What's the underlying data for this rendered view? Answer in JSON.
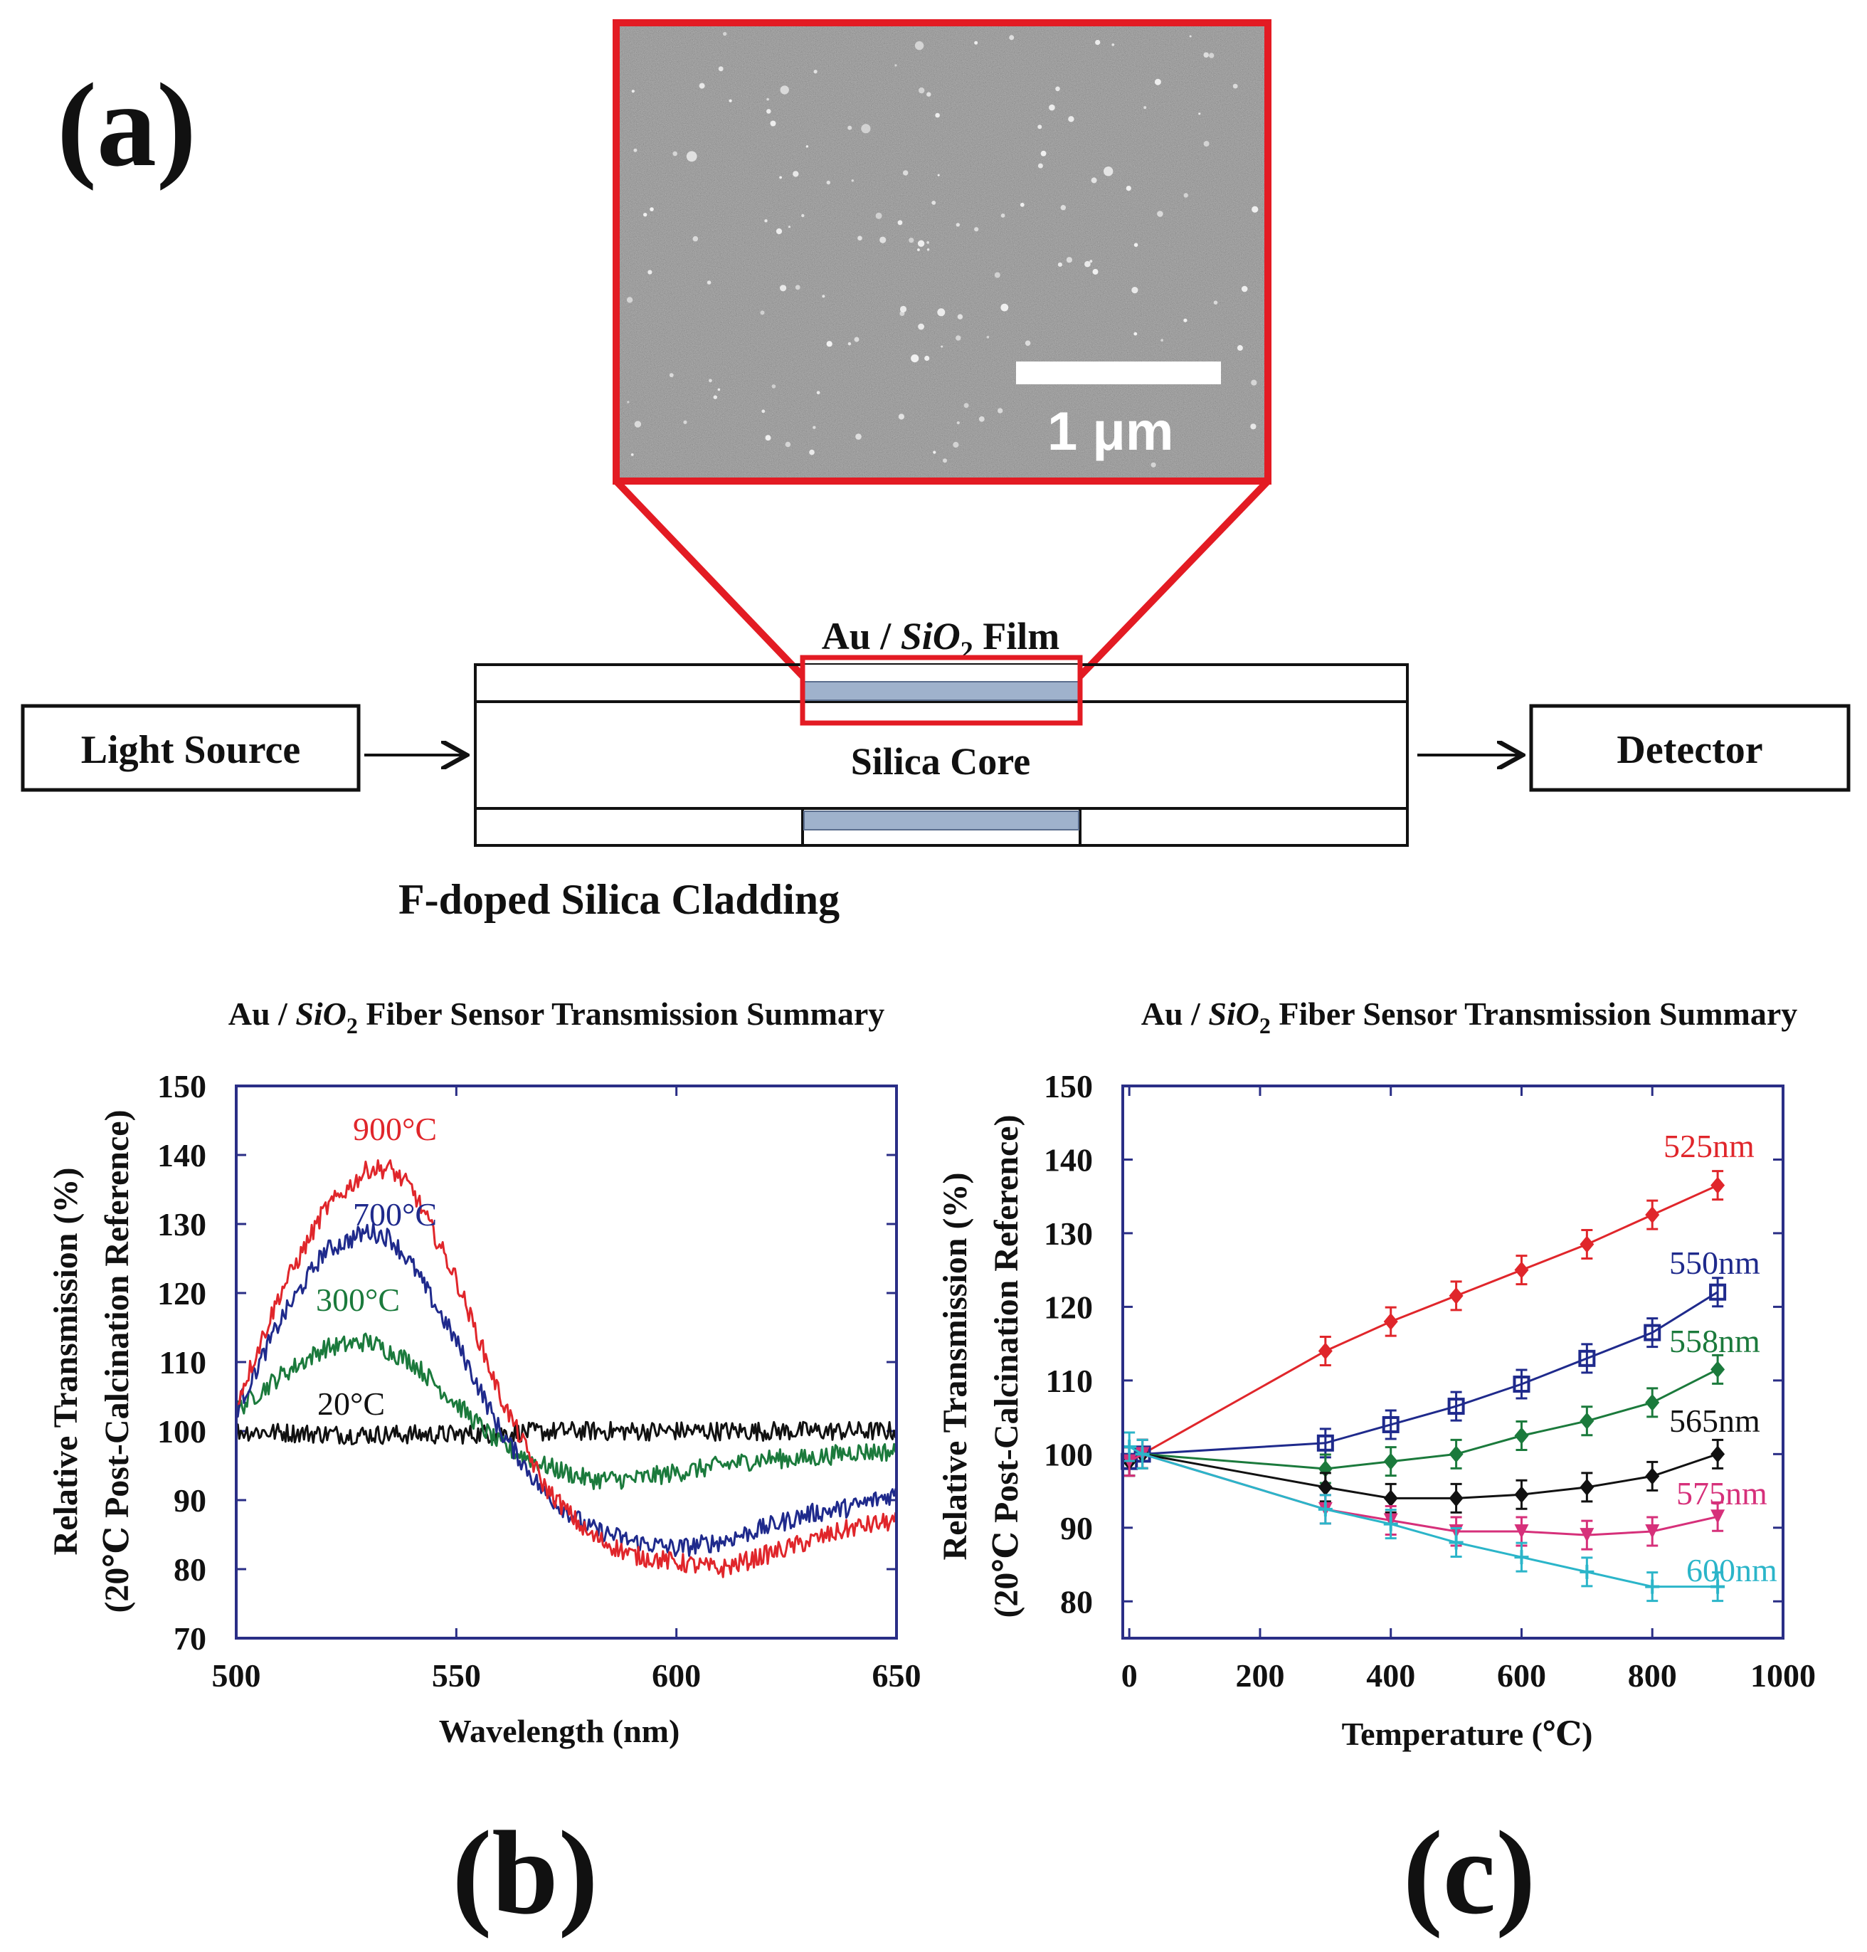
{
  "panel_labels": {
    "a": "(a)",
    "b": "(b)",
    "c": "(c)"
  },
  "sem": {
    "scale_label": "1 μm"
  },
  "schematic": {
    "film_prefix": "Au / ",
    "film_chem": "SiO",
    "film_sub": "2",
    "film_suffix": " Film",
    "light_source": "Light Source",
    "core": "Silica Core",
    "detector": "Detector",
    "cladding": "F-doped Silica Cladding"
  },
  "colors": {
    "red": "#e0262b",
    "blue": "#1f2a8c",
    "green": "#1b7a3c",
    "black": "#111111",
    "magenta": "#d6307a",
    "cyan": "#2bb5c9",
    "axis": "#2a2e86",
    "highlight": "#e31b23"
  },
  "chart_data": [
    {
      "type": "line",
      "title_prefix": "Au / ",
      "title_chem": "SiO",
      "title_sub": "2",
      "title_suffix": " Fiber Sensor Transmission Summary",
      "xlabel": "Wavelength (nm)",
      "ylabel_line1": "Relative Transmission (%)",
      "ylabel_line2": "(20℃ Post-Calcination Reference)",
      "xlim": [
        500,
        650
      ],
      "ylim": [
        70,
        150
      ],
      "xticks": [
        "500",
        "550",
        "600",
        "650"
      ],
      "yticks": [
        "70",
        "80",
        "90",
        "100",
        "110",
        "120",
        "130",
        "140",
        "150"
      ],
      "series": [
        {
          "name": "900°C",
          "color": "red",
          "x": [
            500,
            510,
            520,
            530,
            535,
            540,
            550,
            560,
            570,
            580,
            590,
            600,
            610,
            620,
            630,
            640,
            650
          ],
          "y": [
            104,
            120,
            132,
            138,
            138,
            135,
            122,
            105,
            92,
            85,
            82,
            81,
            80,
            82,
            84,
            86,
            87
          ]
        },
        {
          "name": "700°C",
          "color": "blue",
          "x": [
            500,
            510,
            520,
            530,
            535,
            540,
            550,
            560,
            570,
            580,
            590,
            600,
            610,
            620,
            630,
            640,
            650
          ],
          "y": [
            103,
            116,
            126,
            129,
            128,
            124,
            113,
            100,
            91,
            86,
            84,
            83,
            84,
            86,
            88,
            89,
            91
          ]
        },
        {
          "name": "300°C",
          "color": "green",
          "x": [
            500,
            510,
            520,
            530,
            540,
            550,
            560,
            570,
            580,
            590,
            600,
            610,
            620,
            630,
            640,
            650
          ],
          "y": [
            103,
            108,
            112,
            113,
            110,
            104,
            98,
            95,
            93,
            93,
            94,
            95,
            96,
            96,
            97,
            97
          ]
        },
        {
          "name": "20°C",
          "color": "black",
          "x": [
            500,
            525,
            550,
            575,
            600,
            625,
            650
          ],
          "y": [
            100,
            99.5,
            99.5,
            100,
            100,
            100,
            100
          ]
        }
      ],
      "annotations": [
        "900°C",
        "700°C",
        "300°C",
        "20°C"
      ]
    },
    {
      "type": "line",
      "title_prefix": "Au / ",
      "title_chem": "SiO",
      "title_sub": "2",
      "title_suffix": " Fiber Sensor Transmission Summary",
      "xlabel": "Temperature (℃)",
      "ylabel_line1": "Relative Transmission (%)",
      "ylabel_line2": "(20℃ Post-Calcination Reference)",
      "xlim": [
        -10,
        1000
      ],
      "ylim": [
        75,
        150
      ],
      "xticks": [
        "0",
        "200",
        "400",
        "600",
        "800",
        "1000"
      ],
      "yticks": [
        "80",
        "90",
        "100",
        "110",
        "120",
        "130",
        "140",
        "150"
      ],
      "series": [
        {
          "name": "525nm",
          "color": "red",
          "marker": "diamond",
          "x": [
            0,
            20,
            300,
            400,
            500,
            600,
            700,
            800,
            900
          ],
          "y": [
            99,
            100,
            114,
            118,
            121.5,
            125,
            128.5,
            132.5,
            136.5
          ]
        },
        {
          "name": "550nm",
          "color": "blue",
          "marker": "square",
          "x": [
            0,
            20,
            300,
            400,
            500,
            600,
            700,
            800,
            900
          ],
          "y": [
            99,
            100,
            101.5,
            104,
            106.5,
            109.5,
            113,
            116.5,
            122
          ]
        },
        {
          "name": "558nm",
          "color": "green",
          "marker": "diamond",
          "x": [
            0,
            20,
            300,
            400,
            500,
            600,
            700,
            800,
            900
          ],
          "y": [
            99,
            100,
            98,
            99,
            100,
            102.5,
            104.5,
            107,
            111.5
          ]
        },
        {
          "name": "565nm",
          "color": "black",
          "marker": "diamond",
          "x": [
            0,
            20,
            300,
            400,
            500,
            600,
            700,
            800,
            900
          ],
          "y": [
            99,
            100,
            95.5,
            94,
            94,
            94.5,
            95.5,
            97,
            100
          ]
        },
        {
          "name": "575nm",
          "color": "magenta",
          "marker": "triangle",
          "x": [
            0,
            20,
            300,
            400,
            500,
            600,
            700,
            800,
            900
          ],
          "y": [
            99,
            100,
            92.5,
            91,
            89.5,
            89.5,
            89,
            89.5,
            91.5
          ]
        },
        {
          "name": "600nm",
          "color": "cyan",
          "marker": "cross",
          "x": [
            0,
            20,
            300,
            400,
            500,
            600,
            700,
            800,
            900
          ],
          "y": [
            101,
            100,
            92.5,
            90.5,
            88,
            86,
            84,
            82,
            82
          ]
        }
      ],
      "annotations": [
        "525nm",
        "550nm",
        "558nm",
        "565nm",
        "575nm",
        "600nm"
      ]
    }
  ]
}
